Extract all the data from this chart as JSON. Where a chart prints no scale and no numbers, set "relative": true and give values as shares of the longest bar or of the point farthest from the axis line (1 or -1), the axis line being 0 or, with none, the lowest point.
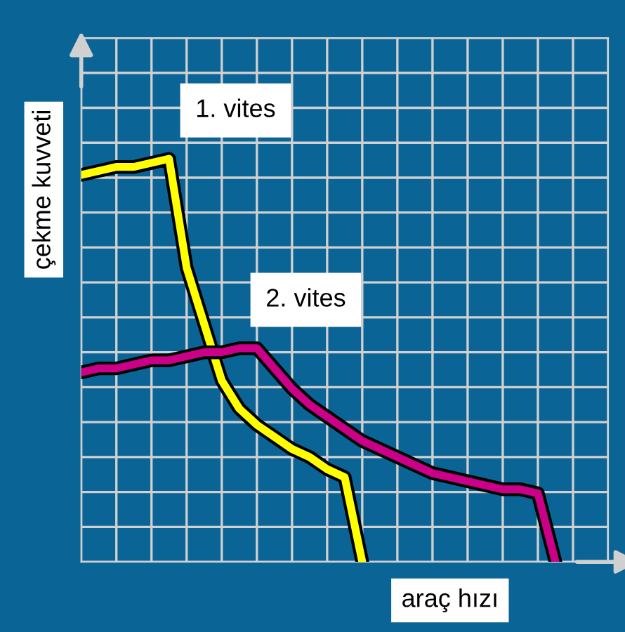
{
  "chart_data": {
    "type": "line",
    "relative": true,
    "grid": true,
    "ylabel": "çekme kuvveti",
    "xlabel": "araç hızı",
    "categories": [
      null,
      null,
      null,
      null,
      null,
      null,
      null,
      null,
      null,
      null,
      null,
      null,
      null,
      null,
      null,
      null,
      null,
      null,
      null,
      null,
      null,
      null,
      null,
      null,
      null,
      null,
      null,
      null,
      null,
      null,
      null
    ],
    "series": [
      {
        "name": "1. vites",
        "color": "#ffff00",
        "values": [
          0.96,
          0.97,
          0.98,
          0.98,
          0.99,
          1,
          0.73,
          0.59,
          0.45,
          0.38,
          0.34,
          0.31,
          0.28,
          0.26,
          0.23,
          0.21,
          0,
          null,
          null,
          null,
          null,
          null,
          null,
          null,
          null,
          null,
          null,
          null,
          null,
          null,
          null
        ]
      },
      {
        "name": "2. vites",
        "color": "#cc0088",
        "values": [
          0.47,
          0.48,
          0.48,
          0.49,
          0.5,
          0.5,
          0.51,
          0.52,
          0.52,
          0.53,
          0.53,
          0.48,
          0.43,
          0.39,
          0.36,
          0.33,
          0.3,
          0.28,
          0.26,
          0.24,
          0.22,
          0.21,
          0.2,
          0.19,
          0.18,
          0.18,
          0.17,
          0,
          null,
          null,
          null
        ]
      }
    ]
  }
}
